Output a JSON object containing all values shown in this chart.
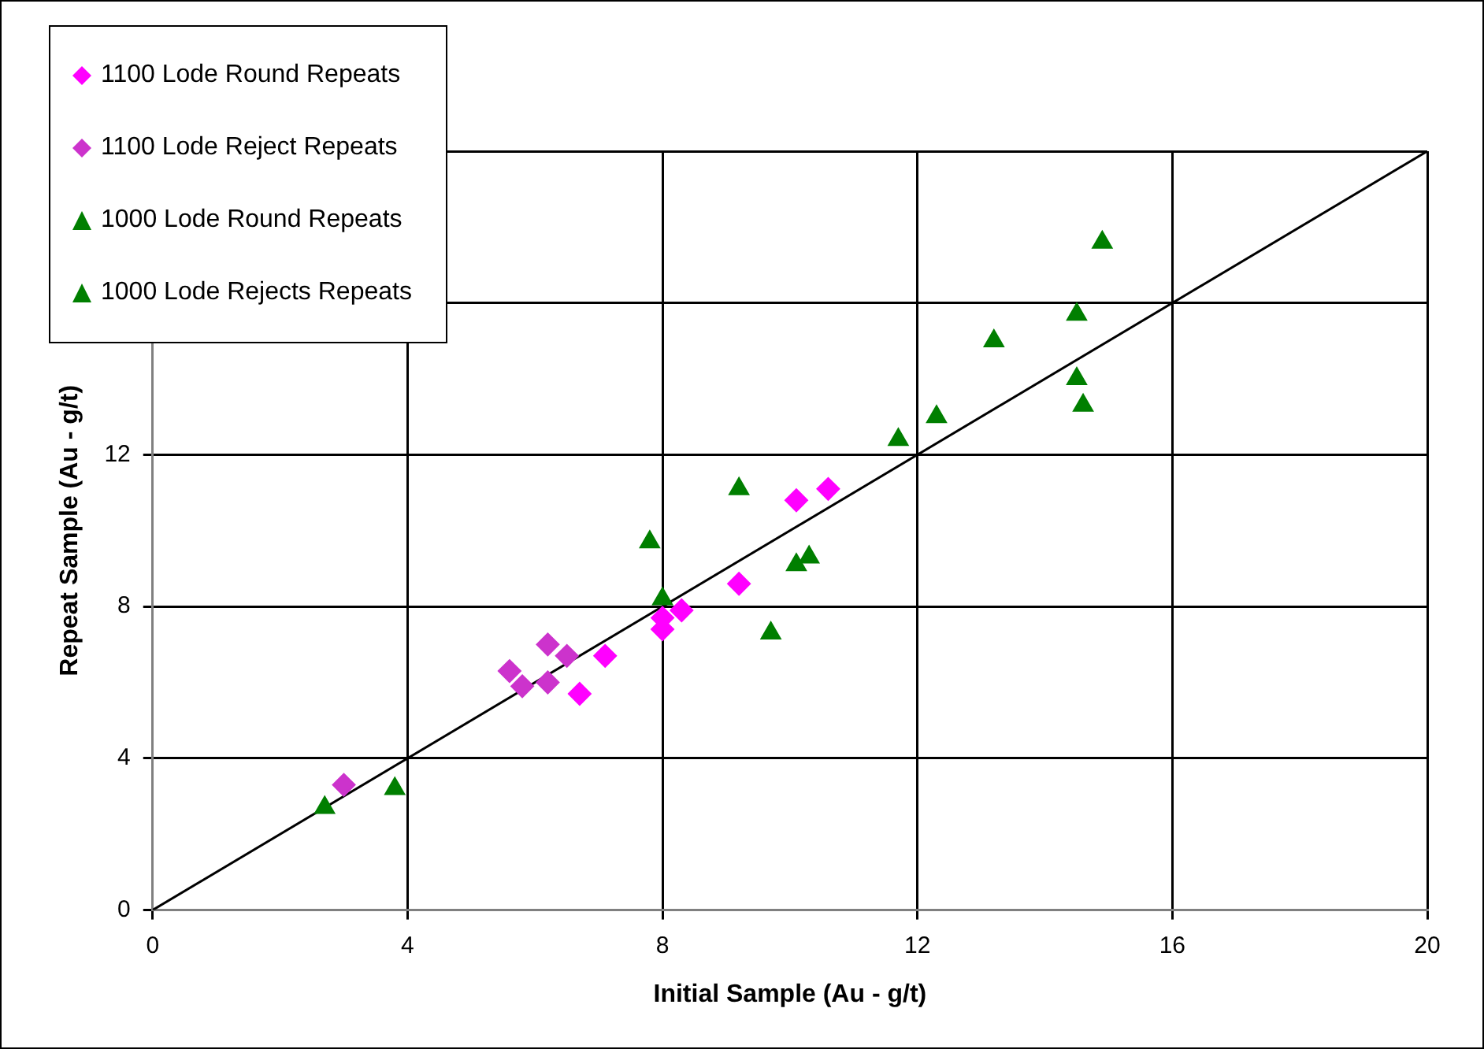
{
  "chart_data": {
    "type": "scatter",
    "xlabel": "Initial Sample (Au - g/t)",
    "ylabel": "Repeat Sample (Au - g/t)",
    "xlim": [
      0,
      20
    ],
    "xticks": [
      0,
      4,
      8,
      12,
      16,
      20
    ],
    "ylim": [
      0,
      20
    ],
    "yticks": [
      0,
      4,
      8,
      12,
      {
        "value": 16,
        "label": null
      },
      {
        "value": 20,
        "label": null
      }
    ],
    "grid": true,
    "legend": "top left",
    "series": [
      {
        "name": "1100 Lode Round Repeats",
        "color": "#ff00ff",
        "marker": "diamond",
        "x": [
          6.7,
          7.1,
          8.0,
          8.0,
          8.3,
          9.2,
          10.1,
          10.6
        ],
        "values": [
          5.7,
          6.7,
          7.7,
          7.4,
          7.9,
          8.6,
          10.8,
          11.1
        ]
      },
      {
        "name": "1100 Lode Reject Repeats",
        "color": "#cc33cc",
        "marker": "diamond",
        "x": [
          3.0,
          5.6,
          5.8,
          6.2,
          6.2,
          6.5
        ],
        "values": [
          3.3,
          6.3,
          5.9,
          7.0,
          6.0,
          6.7
        ]
      },
      {
        "name": "1000 Lode Round Repeats",
        "color": "#007f00",
        "marker": "triangle",
        "x": [
          2.7,
          3.8,
          7.8,
          9.7,
          10.1,
          12.3,
          13.2,
          14.5,
          14.6
        ],
        "values": [
          2.7,
          3.2,
          9.7,
          7.3,
          9.1,
          13.0,
          15.0,
          14.0,
          13.3
        ]
      },
      {
        "name": "1000 Lode Rejects Repeats",
        "color": "#007f00",
        "marker": "triangle",
        "x": [
          8.0,
          9.2,
          10.3,
          11.7,
          14.5,
          14.9
        ],
        "values": [
          8.2,
          11.1,
          9.3,
          12.4,
          15.7,
          17.6
        ]
      },
      {
        "type": "line",
        "color": "#000000",
        "marker": "none",
        "x": [
          0,
          20
        ],
        "values": [
          0,
          20
        ]
      }
    ]
  }
}
